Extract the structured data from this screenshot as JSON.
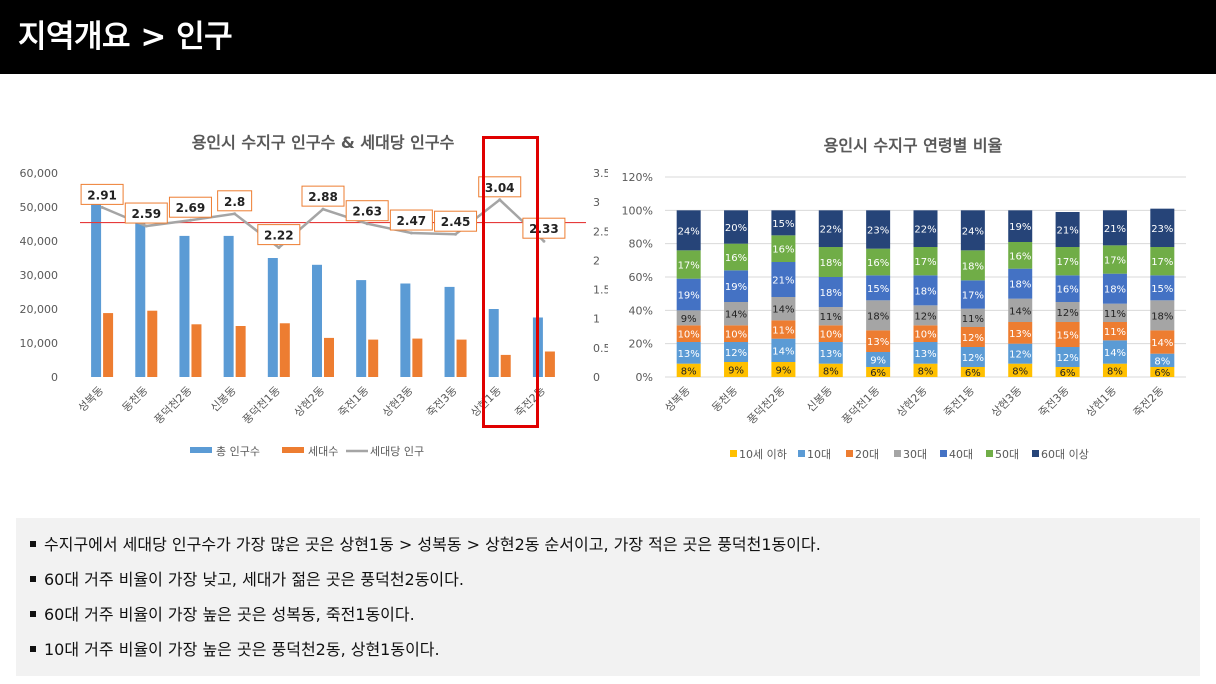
{
  "header": {
    "title": "지역개요 > 인구"
  },
  "colors": {
    "total_population": "#5b9bd5",
    "households": "#ed7d31",
    "per_household": "#a5a5a5",
    "reference_line": "#e63b3b",
    "highlight": "#e00000",
    "age_10_below": "#ffc000",
    "age_10s": "#5b9bd5",
    "age_20s": "#ed7d31",
    "age_30s": "#a5a5a5",
    "age_40s": "#4472c4",
    "age_50s": "#70ad47",
    "age_60_above": "#264478"
  },
  "chart_data": [
    {
      "type": "bar",
      "title": "용인시 수지구 인구수 & 세대당 인구수",
      "categories": [
        "성복동",
        "동천동",
        "풍덕천2동",
        "신봉동",
        "풍덕천1동",
        "상현2동",
        "죽전1동",
        "상현3동",
        "죽전3동",
        "상현1동",
        "죽전2동"
      ],
      "series": [
        {
          "name": "총 인구수",
          "type": "bar",
          "axis": "left",
          "values": [
            52000,
            46000,
            41500,
            41500,
            35000,
            33000,
            28500,
            27500,
            26500,
            20000,
            17500
          ]
        },
        {
          "name": "세대수",
          "type": "bar",
          "axis": "left",
          "values": [
            18800,
            19500,
            15500,
            15000,
            15800,
            11500,
            11000,
            11300,
            11000,
            6500,
            7500
          ]
        },
        {
          "name": "세대당 인구",
          "type": "line",
          "axis": "right",
          "values": [
            2.91,
            2.59,
            2.69,
            2.8,
            2.22,
            2.88,
            2.63,
            2.47,
            2.45,
            3.04,
            2.33
          ],
          "labels": [
            "2.91",
            "2.59",
            "2.69",
            "2.8",
            "2.22",
            "2.88",
            "2.63",
            "2.47",
            "2.45",
            "3.04",
            "2.33"
          ]
        }
      ],
      "y_left": {
        "ylim": [
          0,
          60000
        ],
        "ticks": [
          "0",
          "10,000",
          "20,000",
          "30,000",
          "40,000",
          "50,000",
          "60,000"
        ]
      },
      "y_right": {
        "ylim": [
          0,
          3.5
        ],
        "ticks": [
          "0",
          "0.5",
          "1",
          "1.5",
          "2",
          "2.5",
          "3",
          "3.5"
        ]
      },
      "reference_line_right": 2.65,
      "highlighted_category": "상현1동",
      "legend_position": "bottom",
      "grid": false
    },
    {
      "type": "bar",
      "stacked": true,
      "title": "용인시 수지구 연령별 비율",
      "categories": [
        "성복동",
        "동천동",
        "풍덕천2동",
        "신봉동",
        "풍덕천1동",
        "상현2동",
        "죽전1동",
        "상현3동",
        "죽전3동",
        "상현1동",
        "죽전2동"
      ],
      "series": [
        {
          "name": "10세 이하",
          "values": [
            8,
            9,
            9,
            8,
            6,
            8,
            6,
            8,
            6,
            8,
            6
          ]
        },
        {
          "name": "10대",
          "values": [
            13,
            12,
            14,
            13,
            9,
            13,
            12,
            12,
            12,
            14,
            8
          ]
        },
        {
          "name": "20대",
          "values": [
            10,
            10,
            11,
            10,
            13,
            10,
            12,
            13,
            15,
            11,
            14
          ]
        },
        {
          "name": "30대",
          "values": [
            9,
            14,
            14,
            11,
            18,
            12,
            11,
            14,
            12,
            11,
            18
          ]
        },
        {
          "name": "40대",
          "values": [
            19,
            19,
            21,
            18,
            15,
            18,
            17,
            18,
            16,
            18,
            15
          ]
        },
        {
          "name": "50대",
          "values": [
            17,
            16,
            16,
            18,
            16,
            17,
            18,
            16,
            17,
            17,
            17
          ]
        },
        {
          "name": "60대 이상",
          "values": [
            24,
            20,
            15,
            22,
            23,
            22,
            24,
            19,
            21,
            21,
            23
          ]
        }
      ],
      "ylim": [
        0,
        120
      ],
      "y_ticks": [
        "0%",
        "20%",
        "40%",
        "60%",
        "80%",
        "100%",
        "120%"
      ],
      "grid": true,
      "legend_position": "bottom"
    }
  ],
  "notes": [
    "수지구에서 세대당 인구수가 가장 많은 곳은 상현1동 > 성복동 > 상현2동 순서이고, 가장 적은 곳은 풍덕천1동이다.",
    "60대 거주 비율이 가장 낮고, 세대가 젊은 곳은 풍덕천2동이다.",
    "60대 거주 비율이 가장 높은 곳은 성복동, 죽전1동이다.",
    "10대 거주 비율이 가장 높은 곳은 풍덕천2동, 상현1동이다."
  ]
}
